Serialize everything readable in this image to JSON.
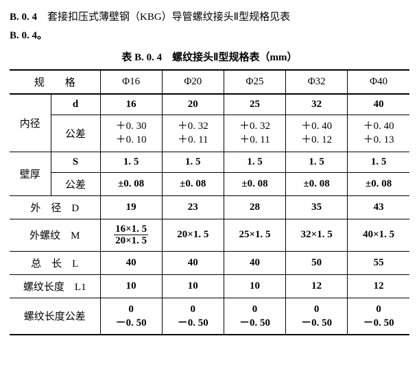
{
  "intro": {
    "prefix": "B. 0. 4",
    "text_a": "　套接扣压式薄壁钢（KBG）导管螺纹接头Ⅱ型规格见表",
    "line2": "B. 0. 4。"
  },
  "table": {
    "title": "表 B. 0. 4　螺纹接头Ⅱ型规格表（mm）",
    "spec_label": "规　　格",
    "columns": [
      "Φ16",
      "Φ20",
      "Φ25",
      "Φ32",
      "Φ40"
    ],
    "rows": {
      "inner": {
        "group": "内径",
        "d_label": "d",
        "d": [
          "16",
          "20",
          "25",
          "32",
          "40"
        ],
        "tol_label": "公差",
        "tol_top": [
          "＋0. 30",
          "＋0. 32",
          "＋0. 32",
          "＋0. 40",
          "＋0. 40"
        ],
        "tol_bottom": [
          "＋0. 10",
          "＋0. 11",
          "＋0. 11",
          "＋0. 12",
          "＋0. 13"
        ]
      },
      "wall": {
        "group": "壁厚",
        "s_label": "S",
        "s": [
          "1. 5",
          "1. 5",
          "1. 5",
          "1. 5",
          "1. 5"
        ],
        "tol_label": "公差",
        "tol": [
          "±0. 08",
          "±0. 08",
          "±0. 08",
          "±0. 08",
          "±0. 08"
        ]
      },
      "outer_d": {
        "label": "外　径　D",
        "v": [
          "19",
          "23",
          "28",
          "35",
          "43"
        ]
      },
      "thread_m": {
        "label": "外螺纹　M",
        "first": {
          "num": "16×1. 5",
          "den": "20×1. 5"
        },
        "rest": [
          "20×1. 5",
          "25×1. 5",
          "32×1. 5",
          "40×1. 5"
        ]
      },
      "total_l": {
        "label": "总　长　L",
        "v": [
          "40",
          "40",
          "40",
          "50",
          "55"
        ]
      },
      "thread_len": {
        "label": "螺纹长度　L1",
        "v": [
          "10",
          "10",
          "10",
          "12",
          "12"
        ]
      },
      "thread_tol": {
        "label": "螺纹长度公差",
        "top": [
          "0",
          "0",
          "0",
          "0",
          "0"
        ],
        "bottom": [
          "－0. 50",
          "－0. 50",
          "－0. 50",
          "－0. 50",
          "－0. 50"
        ]
      }
    }
  }
}
